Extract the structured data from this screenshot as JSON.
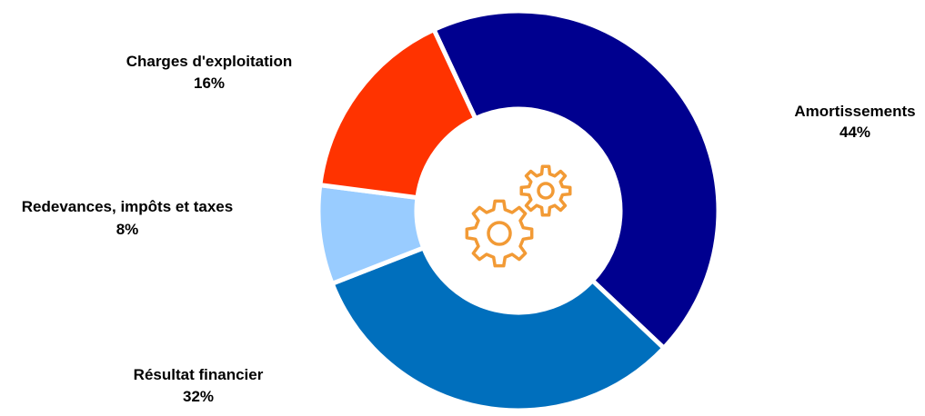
{
  "chart_data": {
    "type": "pie",
    "variant": "donut",
    "title": "",
    "slices": [
      {
        "label": "Amortissements",
        "value": 44,
        "value_label": "44%",
        "color": "#00008F"
      },
      {
        "label": "Résultat financier",
        "value": 32,
        "value_label": "32%",
        "color": "#006FBD"
      },
      {
        "label": "Redevances, impôts et taxes",
        "value": 8,
        "value_label": "8%",
        "color": "#99CCFF"
      },
      {
        "label": "Charges d'exploitation",
        "value": 16,
        "value_label": "16%",
        "color": "#FF3300"
      }
    ],
    "legend": "none",
    "center_icon": "gears-icon",
    "center_icon_color": "#F29A35"
  }
}
